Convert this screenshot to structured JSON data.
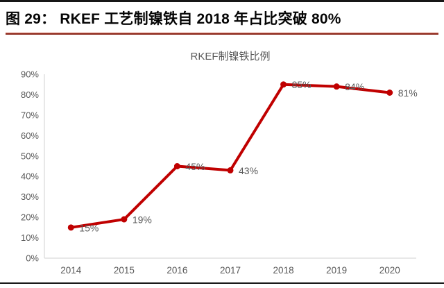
{
  "page": {
    "figure_caption": "图 29： RKEF 工艺制镍铁自 2018 年占比突破 80%"
  },
  "colors": {
    "line": "#c00000",
    "marker": "#c00000",
    "axis_line": "#d9d9d9",
    "tick_label": "#595959",
    "data_label": "#595959",
    "chart_title": "#595959",
    "caption_rule_red": "#8e2f23",
    "page_rule_black": "#161616"
  },
  "chart_data": {
    "type": "line",
    "title": "RKEF制镍铁比例",
    "categories": [
      "2014",
      "2015",
      "2016",
      "2017",
      "2018",
      "2019",
      "2020"
    ],
    "series": [
      {
        "name": "RKEF制镍铁比例",
        "values": [
          15,
          19,
          45,
          43,
          85,
          84,
          81
        ]
      }
    ],
    "data_labels": [
      "15%",
      "19%",
      "45%",
      "43%",
      "85%",
      "84%",
      "81%"
    ],
    "xlabel": "",
    "ylabel": "",
    "ylim": [
      0,
      90
    ],
    "ytick_step": 10,
    "yticks": [
      "0%",
      "10%",
      "20%",
      "30%",
      "40%",
      "50%",
      "60%",
      "70%",
      "80%",
      "90%"
    ],
    "grid": false,
    "legend": "none"
  }
}
